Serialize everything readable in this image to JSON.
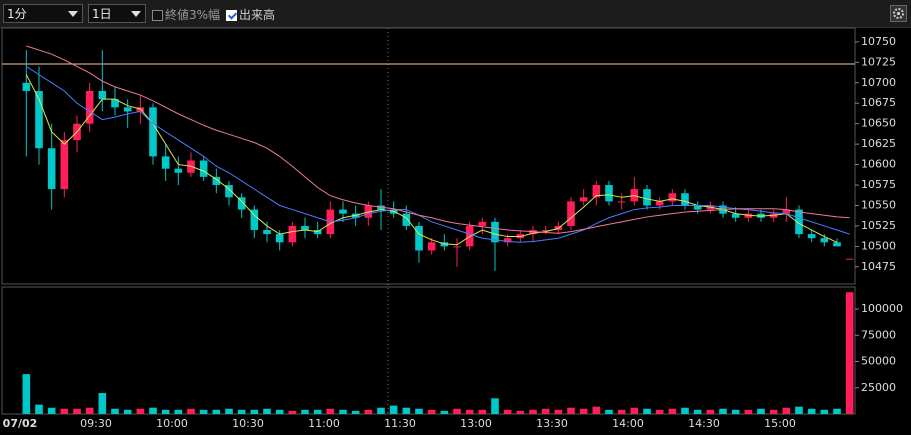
{
  "toolbar": {
    "interval": "1分",
    "period": "1日",
    "option_1": {
      "label": "終値3%幅",
      "checked": false
    },
    "option_2": {
      "label": "出来高",
      "checked": true
    }
  },
  "chart_data": [
    {
      "type": "candlestick",
      "up_color": "#ff1e5a",
      "down_color": "#00c8c8",
      "categories": [
        "07/02",
        null,
        null,
        null,
        null,
        null,
        "09:30",
        null,
        null,
        null,
        null,
        null,
        "10:00",
        null,
        null,
        null,
        null,
        null,
        "10:30",
        null,
        null,
        null,
        null,
        null,
        "11:00",
        null,
        null,
        null,
        null,
        null,
        "11:30",
        null,
        null,
        null,
        null,
        null,
        "13:00",
        null,
        null,
        null,
        null,
        null,
        "13:30",
        null,
        null,
        null,
        null,
        null,
        "14:00",
        null,
        null,
        null,
        null,
        null,
        "14:30",
        null,
        null,
        null,
        null,
        null,
        "15:00",
        null,
        null,
        null,
        null,
        null
      ],
      "open": [
        10700,
        10690,
        10620,
        10570,
        10630,
        10650,
        10690,
        10680,
        10670,
        10665,
        10670,
        10610,
        10595,
        10590,
        10605,
        10585,
        10575,
        10560,
        10545,
        10520,
        10515,
        10505,
        10525,
        10520,
        10515,
        10545,
        10540,
        10535,
        10550,
        10545,
        10540,
        10525,
        10495,
        10505,
        10500,
        10500,
        10525,
        10530,
        10505,
        10510,
        10515,
        10520,
        10520,
        10525,
        10555,
        10560,
        10575,
        10555,
        10555,
        10570,
        10550,
        10555,
        10565,
        10550,
        10545,
        10550,
        10540,
        10535,
        10540,
        10535,
        10540,
        10545,
        10515,
        10510,
        10505,
        10485
      ],
      "high": [
        10740,
        10720,
        10650,
        10640,
        10660,
        10700,
        10740,
        10695,
        10680,
        10685,
        10675,
        10625,
        10610,
        10615,
        10610,
        10595,
        10580,
        10565,
        10550,
        10530,
        10520,
        10530,
        10535,
        10530,
        10555,
        10555,
        10550,
        10555,
        10570,
        10555,
        10550,
        10530,
        10510,
        10515,
        10510,
        10530,
        10535,
        10535,
        10515,
        10520,
        10525,
        10525,
        10530,
        10560,
        10570,
        10580,
        10580,
        10565,
        10585,
        10575,
        10560,
        10570,
        10570,
        10555,
        10555,
        10555,
        10548,
        10545,
        10545,
        10545,
        10560,
        10550,
        10520,
        10515,
        10510,
        10485
      ],
      "low": [
        10610,
        10600,
        10545,
        10560,
        10615,
        10640,
        10665,
        10660,
        10645,
        10650,
        10600,
        10580,
        10575,
        10585,
        10580,
        10565,
        10550,
        10535,
        10510,
        10505,
        10495,
        10500,
        10510,
        10510,
        10510,
        10530,
        10525,
        10525,
        10520,
        10535,
        10520,
        10480,
        10490,
        10495,
        10475,
        10495,
        10515,
        10470,
        10500,
        10505,
        10505,
        10515,
        10515,
        10520,
        10550,
        10550,
        10550,
        10545,
        10550,
        10545,
        10545,
        10550,
        10545,
        10540,
        10540,
        10535,
        10530,
        10530,
        10530,
        10530,
        10530,
        10510,
        10505,
        10500,
        10500,
        10485
      ],
      "close": [
        10690,
        10620,
        10570,
        10630,
        10650,
        10690,
        10680,
        10670,
        10665,
        10670,
        10610,
        10595,
        10590,
        10605,
        10585,
        10575,
        10560,
        10545,
        10520,
        10515,
        10505,
        10525,
        10520,
        10515,
        10545,
        10540,
        10535,
        10550,
        10545,
        10540,
        10525,
        10495,
        10505,
        10500,
        10500,
        10525,
        10530,
        10505,
        10510,
        10515,
        10520,
        10520,
        10525,
        10555,
        10560,
        10575,
        10555,
        10555,
        10570,
        10550,
        10555,
        10565,
        10550,
        10545,
        10550,
        10540,
        10535,
        10540,
        10535,
        10540,
        10545,
        10515,
        10510,
        10505,
        10500,
        10485
      ],
      "lines": [
        {
          "color": "#d8e84a",
          "values": [
            10710,
            10680,
            10640,
            10625,
            10640,
            10660,
            10680,
            10680,
            10672,
            10668,
            10650,
            10625,
            10600,
            10598,
            10592,
            10582,
            10570,
            10555,
            10538,
            10525,
            10515,
            10518,
            10520,
            10518,
            10528,
            10535,
            10538,
            10542,
            10545,
            10543,
            10535,
            10515,
            10508,
            10503,
            10502,
            10512,
            10520,
            10515,
            10512,
            10512,
            10516,
            10518,
            10522,
            10535,
            10548,
            10562,
            10563,
            10560,
            10562,
            10558,
            10555,
            10558,
            10555,
            10550,
            10548,
            10545,
            10540,
            10538,
            10537,
            10538,
            10540,
            10528,
            10520,
            10512,
            10505,
            null
          ]
        },
        {
          "color": "#4a7cff",
          "values": [
            10720,
            10710,
            10700,
            10690,
            10675,
            10665,
            10655,
            10658,
            10662,
            10665,
            10650,
            10640,
            10630,
            10620,
            10610,
            10598,
            10590,
            10580,
            10570,
            10560,
            10550,
            10545,
            10540,
            10535,
            10530,
            10532,
            10535,
            10540,
            10543,
            10545,
            10545,
            10538,
            10530,
            10525,
            10520,
            10515,
            10510,
            10508,
            10506,
            10505,
            10506,
            10508,
            10510,
            10515,
            10520,
            10528,
            10535,
            10540,
            10545,
            10547,
            10548,
            10550,
            10550,
            10550,
            10550,
            10548,
            10546,
            10545,
            10543,
            10541,
            10540,
            10535,
            10530,
            10525,
            10520,
            10515
          ]
        },
        {
          "color": "#f07a9a",
          "values": [
            10745,
            10740,
            10735,
            10728,
            10720,
            10712,
            10702,
            10695,
            10690,
            10685,
            10678,
            10670,
            10662,
            10655,
            10648,
            10642,
            10637,
            10632,
            10627,
            10620,
            10610,
            10598,
            10585,
            10572,
            10562,
            10557,
            10553,
            10550,
            10548,
            10546,
            10542,
            10538,
            10535,
            10531,
            10528,
            10526,
            10524,
            10522,
            10520,
            10519,
            10518,
            10517,
            10516,
            10518,
            10521,
            10524,
            10527,
            10530,
            10533,
            10536,
            10538,
            10540,
            10542,
            10543,
            10544,
            10545,
            10546,
            10546,
            10546,
            10546,
            10545,
            10542,
            10540,
            10538,
            10536,
            10535
          ]
        }
      ],
      "hline": {
        "value": 10723,
        "color": "#ffc8a0"
      },
      "ylim": [
        10454,
        10767
      ],
      "yticks": [
        10475,
        10500,
        10525,
        10550,
        10575,
        10600,
        10625,
        10650,
        10675,
        10700,
        10725,
        10750
      ]
    },
    {
      "type": "bar",
      "values": [
        38000,
        9000,
        6000,
        5000,
        5000,
        6000,
        20000,
        5000,
        4000,
        5000,
        6000,
        4000,
        4000,
        5000,
        4000,
        4000,
        5000,
        4000,
        4000,
        5000,
        4000,
        3000,
        4000,
        4000,
        5000,
        4000,
        3000,
        4000,
        6000,
        8000,
        6000,
        5000,
        4000,
        3000,
        5000,
        4000,
        4000,
        15000,
        4000,
        3000,
        4000,
        5000,
        4000,
        6000,
        5000,
        7000,
        4000,
        4000,
        6000,
        5000,
        4000,
        5000,
        6000,
        4000,
        4000,
        5000,
        4000,
        4000,
        5000,
        4000,
        6000,
        7000,
        5000,
        4000,
        5000,
        116000
      ],
      "ylim": [
        0,
        121000
      ],
      "yticks": [
        25000,
        50000,
        75000,
        100000
      ]
    }
  ]
}
